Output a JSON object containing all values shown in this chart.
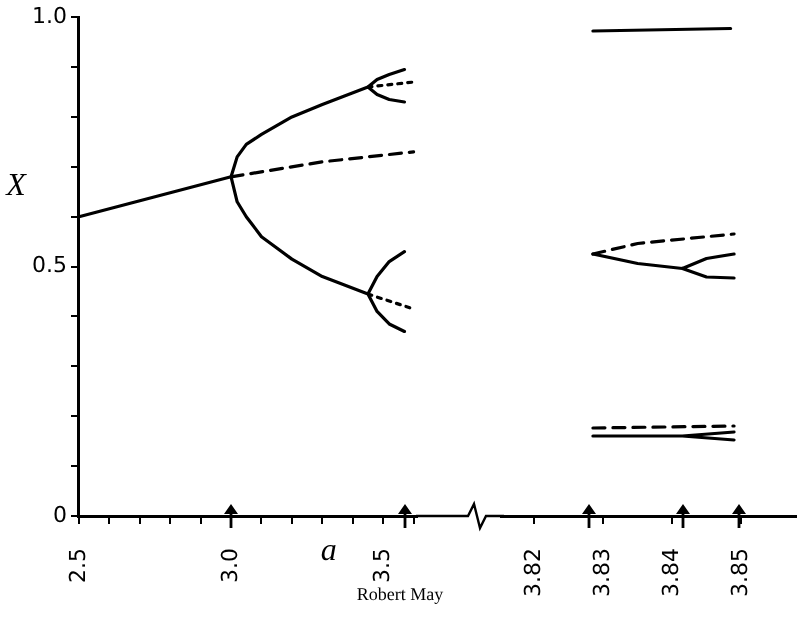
{
  "chart_data": [
    {
      "type": "line",
      "xlabel": "a",
      "ylabel": "X",
      "xlim": [
        2.5,
        3.61
      ],
      "ylim": [
        0,
        1.0
      ],
      "xticks": [
        2.5,
        {
          "value": 2.6,
          "label": null
        },
        {
          "value": 2.7,
          "label": null
        },
        {
          "value": 2.8,
          "label": null
        },
        {
          "value": 2.9,
          "label": null
        },
        {
          "value": 3.0,
          "label": "3.0"
        },
        {
          "value": 3.1,
          "label": null
        },
        {
          "value": 3.2,
          "label": null
        },
        {
          "value": 3.3,
          "label": null
        },
        {
          "value": 3.4,
          "label": null
        },
        3.5,
        {
          "value": 3.6,
          "label": null
        }
      ],
      "yticks": [
        0,
        {
          "value": 0.1,
          "label": null
        },
        {
          "value": 0.2,
          "label": null
        },
        {
          "value": 0.3,
          "label": null
        },
        {
          "value": 0.4,
          "label": null
        },
        0.5,
        {
          "value": 0.6,
          "label": null
        },
        {
          "value": 0.7,
          "label": null
        },
        {
          "value": 0.8,
          "label": null
        },
        {
          "value": 0.9,
          "label": null
        },
        {
          "value": 1.0,
          "label": "1.0"
        }
      ],
      "grid": false,
      "legend": false,
      "marker": "none",
      "series": [
        {
          "color": "#000000",
          "line_style": "solid",
          "x": [
            2.5,
            3.0,
            3.02,
            3.05,
            3.1,
            3.2,
            3.3,
            3.45,
            3.48,
            3.52,
            3.57,
            null,
            3.45,
            3.48,
            3.52,
            3.57,
            null,
            3.0,
            3.02,
            3.05,
            3.1,
            3.2,
            3.3,
            3.45,
            3.48,
            3.52,
            3.57,
            null,
            3.45,
            3.48,
            3.52,
            3.57
          ],
          "values": [
            0.6,
            0.68,
            0.72,
            0.745,
            0.765,
            0.8,
            0.825,
            0.86,
            0.875,
            0.885,
            0.895,
            null,
            0.86,
            0.845,
            0.835,
            0.83,
            null,
            0.68,
            0.63,
            0.6,
            0.56,
            0.515,
            0.48,
            0.445,
            0.48,
            0.51,
            0.53,
            null,
            0.445,
            0.41,
            0.385,
            0.37
          ]
        },
        {
          "color": "#000000",
          "line_style": "dashed",
          "x": [
            3.0,
            3.3,
            3.6
          ],
          "values": [
            0.68,
            0.71,
            0.73
          ]
        },
        {
          "color": "#000000",
          "line_style": "dotted",
          "x": [
            3.45,
            3.6
          ],
          "values": [
            0.86,
            0.87
          ]
        },
        {
          "color": "#000000",
          "line_style": "dotted",
          "x": [
            3.45,
            3.6
          ],
          "values": [
            0.445,
            0.415
          ]
        }
      ],
      "annotations": [
        "Robert May"
      ]
    },
    {
      "type": "line",
      "xlim": [
        3.815,
        3.858
      ],
      "ylim": [
        0,
        1.0
      ],
      "xticks": [
        3.82,
        3.83,
        3.84,
        3.85
      ],
      "grid": false,
      "legend": false,
      "marker": "none",
      "tick_labels": "x",
      "series": [
        {
          "color": "#000000",
          "line_style": "solid",
          "x": [
            3.8285,
            3.8485,
            null,
            3.8285,
            3.835,
            3.8415,
            3.845,
            3.849,
            null,
            3.8415,
            3.845,
            3.849,
            null,
            3.8285,
            3.8415,
            3.849,
            null,
            3.8415,
            3.849
          ],
          "values": [
            0.97,
            0.975,
            null,
            0.524,
            0.505,
            0.495,
            0.515,
            0.524,
            null,
            0.495,
            0.478,
            0.476,
            null,
            0.16,
            0.16,
            0.168,
            null,
            0.16,
            0.152
          ]
        },
        {
          "color": "#000000",
          "line_style": "dashed",
          "x": [
            3.8285,
            3.835,
            3.849,
            null,
            3.8285,
            3.849
          ],
          "values": [
            0.524,
            0.545,
            0.564,
            null,
            0.176,
            0.18
          ]
        }
      ]
    }
  ]
}
